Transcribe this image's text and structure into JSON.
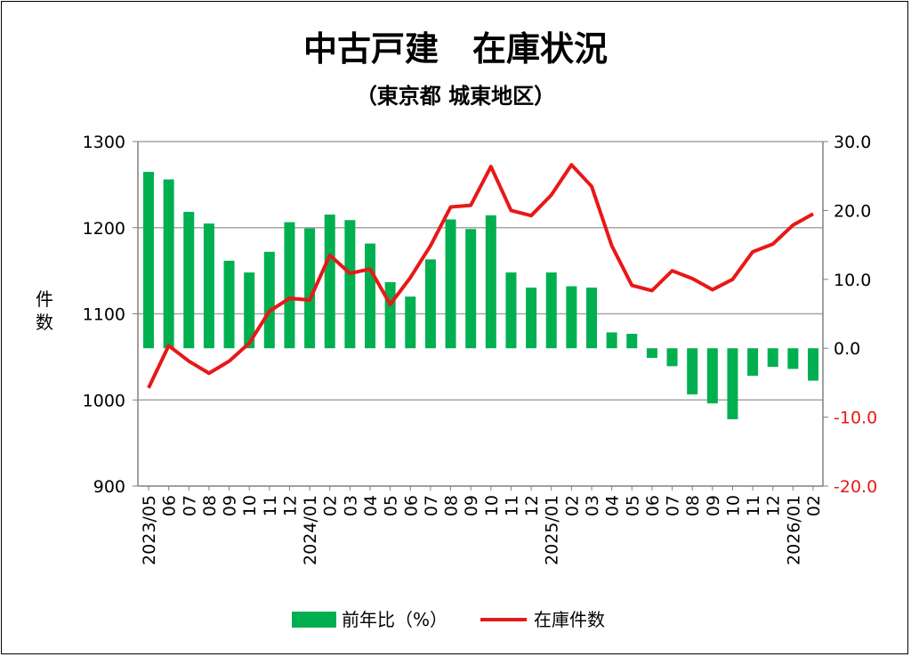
{
  "chart_data": {
    "type": "bar+line",
    "title": "中古戸建　在庫状況",
    "subtitle": "（東京都 城東地区）",
    "ylabel_left": "件数",
    "ylim_left": [
      900,
      1300
    ],
    "yticks_left": [
      "900",
      "1000",
      "1100",
      "1200",
      "1300"
    ],
    "ylim_right": [
      -20,
      30
    ],
    "yticks_right": [
      "-20.0",
      "-10.0",
      "0.0",
      "10.0",
      "20.0",
      "30.0"
    ],
    "grid": true,
    "legend_position": "bottom",
    "categories": [
      "2023/05",
      "06",
      "07",
      "08",
      "09",
      "10",
      "11",
      "12",
      "2024/01",
      "02",
      "03",
      "04",
      "05",
      "06",
      "07",
      "08",
      "09",
      "10",
      "11",
      "12",
      "2025/01",
      "02",
      "03",
      "04",
      "05",
      "06",
      "07",
      "08",
      "09",
      "10",
      "11",
      "12",
      "2026/01",
      "02"
    ],
    "series": [
      {
        "name": "前年比(%)",
        "type": "bar",
        "axis": "right",
        "color": "#00b050",
        "values": [
          25.6,
          24.5,
          19.8,
          18.1,
          12.7,
          11.0,
          14.0,
          18.3,
          17.4,
          19.4,
          18.6,
          15.2,
          9.6,
          7.5,
          12.9,
          18.7,
          17.3,
          19.3,
          11.0,
          8.8,
          11.0,
          9.0,
          8.8,
          2.3,
          2.1,
          -1.4,
          -2.6,
          -6.7,
          -8.0,
          -10.3,
          -4.0,
          -2.7,
          -3.0,
          -4.7
        ]
      },
      {
        "name": "在庫件数",
        "type": "line",
        "axis": "left",
        "color": "#e81818",
        "values": [
          1014,
          1063,
          1045,
          1031,
          1045,
          1066,
          1103,
          1118,
          1116,
          1168,
          1147,
          1152,
          1111,
          1142,
          1179,
          1224,
          1226,
          1271,
          1220,
          1214,
          1238,
          1273,
          1248,
          1179,
          1133,
          1127,
          1150,
          1141,
          1128,
          1140,
          1172,
          1181,
          1203,
          1216
        ]
      }
    ],
    "legend": [
      "前年比（%）",
      "在庫件数"
    ]
  },
  "colors": {
    "negative_tick": "#e81818",
    "grid": "#a6a6a6"
  }
}
